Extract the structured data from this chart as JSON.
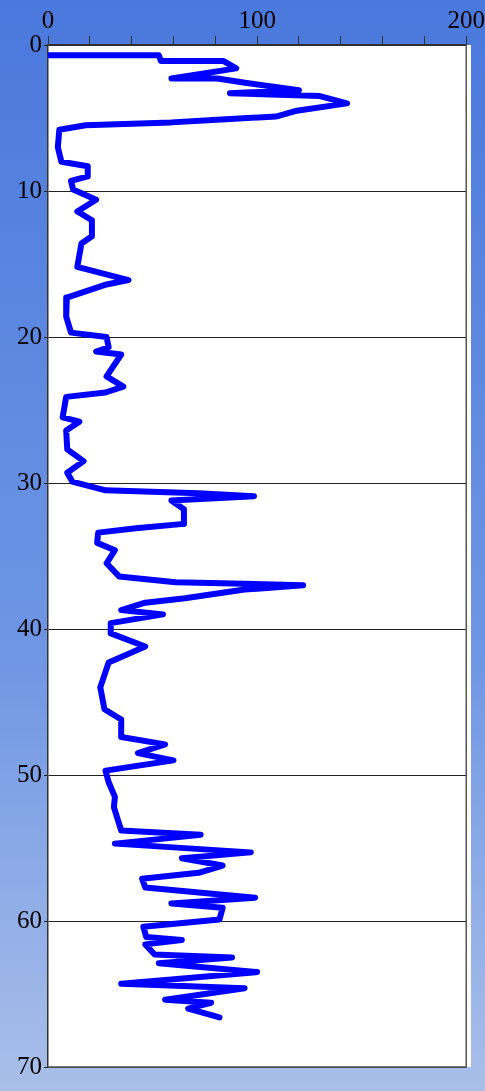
{
  "chart_data": {
    "type": "line",
    "xlim": [
      0,
      200
    ],
    "xticks": [
      0,
      {
        "value": 20,
        "label": null
      },
      {
        "value": 40,
        "label": null
      },
      {
        "value": 60,
        "label": null
      },
      {
        "value": 80,
        "label": null
      },
      100,
      {
        "value": 120,
        "label": null
      },
      {
        "value": 140,
        "label": null
      },
      {
        "value": 160,
        "label": null
      },
      {
        "value": 180,
        "label": null
      },
      200
    ],
    "ylim": [
      70,
      0
    ],
    "yticks": [
      0,
      10,
      20,
      30,
      40,
      50,
      60,
      70
    ],
    "grid": "y",
    "legend": false,
    "marker": "none",
    "line_style": "solid",
    "series": [
      {
        "color": "#0000ff",
        "x": [
          0,
          53,
          54,
          84,
          90,
          59,
          81,
          95,
          120,
          87,
          130,
          143,
          119,
          109,
          83,
          59,
          18,
          5.4,
          4.7,
          6.4,
          19,
          19,
          11,
          12,
          23,
          14,
          21,
          21,
          16,
          14,
          38.5,
          28,
          9,
          8.7,
          11,
          28,
          29,
          23,
          35,
          28,
          36,
          27.5,
          8.7,
          7,
          15,
          8.7,
          9.2,
          17,
          9.2,
          11.6,
          27.5,
          72,
          98.5,
          59,
          65,
          65,
          42,
          24,
          23.5,
          32,
          28,
          34,
          61,
          122,
          94,
          65.5,
          46.5,
          35,
          55,
          30,
          30,
          46.5,
          29,
          25,
          27,
          35,
          35,
          56,
          43,
          60,
          27.5,
          29,
          32,
          31.5,
          35,
          73,
          32,
          97,
          64,
          83.5,
          72,
          45,
          46.5,
          99,
          59,
          83.5,
          82,
          45.6,
          47,
          64,
          46.5,
          51,
          88,
          53,
          100,
          35,
          94,
          56,
          78,
          67,
          82
        ],
        "values": [
          0.7,
          0.7,
          1.1,
          1.1,
          1.6,
          2.3,
          2.3,
          2.6,
          3.1,
          3.3,
          3.5,
          4.0,
          4.5,
          4.9,
          5.1,
          5.3,
          5.5,
          5.8,
          7.0,
          8.0,
          8.3,
          9.0,
          9.3,
          9.9,
          10.6,
          11.4,
          12.0,
          13.1,
          13.6,
          15.2,
          16.1,
          16.4,
          17.3,
          18.6,
          19.7,
          20.0,
          20.7,
          21.0,
          21.2,
          22.7,
          23.4,
          23.8,
          24.1,
          25.5,
          25.8,
          26.4,
          27.7,
          28.5,
          29.3,
          29.9,
          30.5,
          30.7,
          30.9,
          31.2,
          31.8,
          32.8,
          33.1,
          33.4,
          34.1,
          34.6,
          35.5,
          36.4,
          36.8,
          37.0,
          37.3,
          37.9,
          38.2,
          38.7,
          39.0,
          39.6,
          40.3,
          41.2,
          42.3,
          44.0,
          45.5,
          46.2,
          47.4,
          47.9,
          48.5,
          49.0,
          49.7,
          50.5,
          51.5,
          52.2,
          53.8,
          54.1,
          54.7,
          55.3,
          55.7,
          56.2,
          56.7,
          57.1,
          57.7,
          58.4,
          58.8,
          59.1,
          59.9,
          60.4,
          61.1,
          61.3,
          61.6,
          62.3,
          62.5,
          62.9,
          63.5,
          64.3,
          64.6,
          65.4,
          65.6,
          66.0,
          66.6
        ]
      }
    ]
  }
}
